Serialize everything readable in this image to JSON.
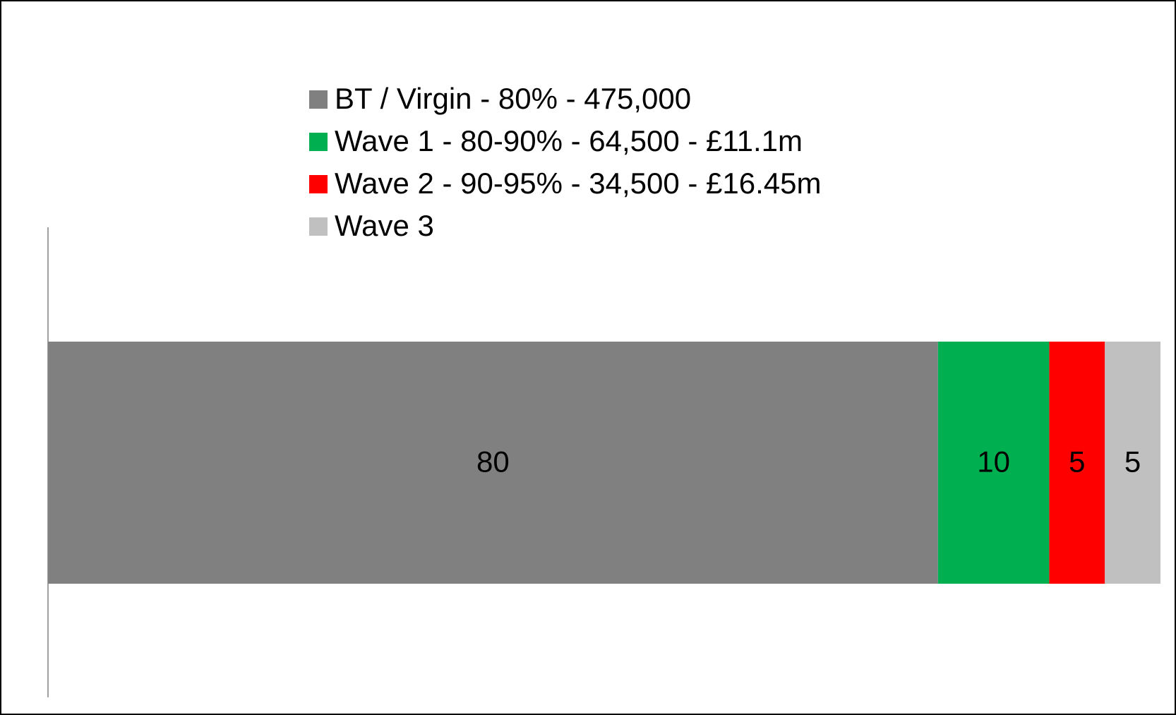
{
  "chart_data": {
    "type": "stacked_barh",
    "categories": [
      null
    ],
    "series": [
      {
        "name": "BT / Virgin - 80% - 475,000",
        "color": "#808080",
        "values": [
          80
        ]
      },
      {
        "name": "Wave 1 - 80-90% - 64,500 - £11.1m",
        "color": "#00b050",
        "values": [
          10
        ]
      },
      {
        "name": "Wave 2 - 90-95% - 34,500 - £16.45m",
        "color": "#ff0000",
        "values": [
          5
        ]
      },
      {
        "name": "Wave 3",
        "color": "#c0c0c0",
        "values": [
          5
        ]
      }
    ],
    "xlim": [
      0,
      100
    ],
    "legend": "top"
  }
}
